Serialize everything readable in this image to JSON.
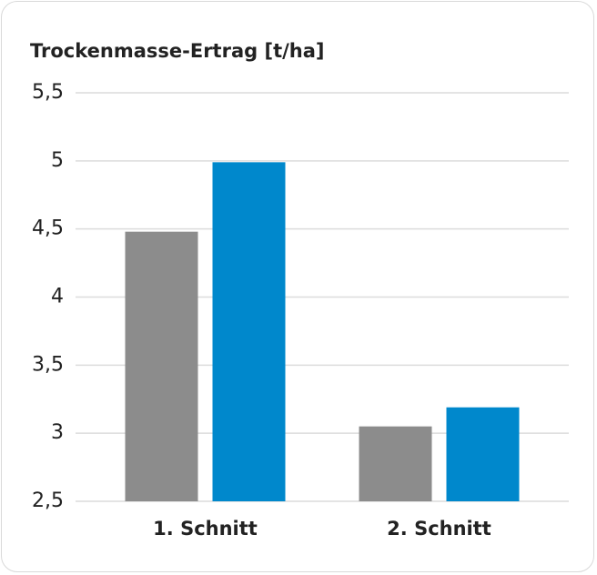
{
  "chart_data": {
    "type": "bar",
    "title": "Trockenmasse-Ertrag [t/ha]",
    "categories": [
      "1. Schnitt",
      "2. Schnitt"
    ],
    "series": [
      {
        "color": "#8c8c8c",
        "values": [
          4.48,
          3.05
        ]
      },
      {
        "color": "#0088cc",
        "values": [
          4.99,
          3.19
        ]
      }
    ],
    "ylim": [
      2.5,
      5.5
    ],
    "yticks": [
      {
        "value": 2.5,
        "label": "2,5"
      },
      3,
      {
        "value": 3.5,
        "label": "3,5"
      },
      4,
      {
        "value": 4.5,
        "label": "4,5"
      },
      5,
      {
        "value": 5.5,
        "label": "5,5"
      }
    ],
    "grid": true
  }
}
